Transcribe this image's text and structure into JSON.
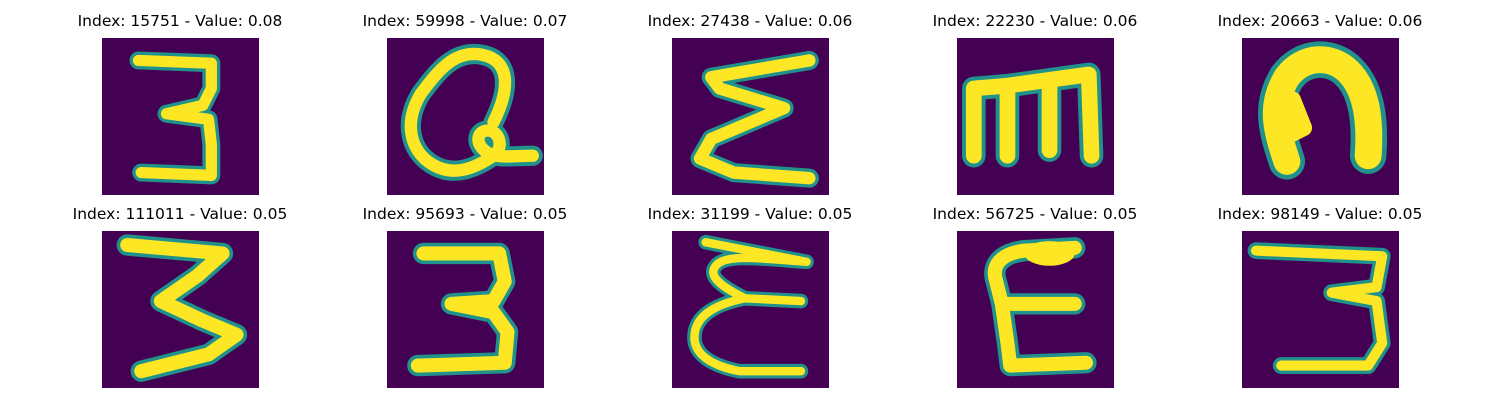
{
  "colors": {
    "background": "#440154",
    "stroke": "#fde725",
    "edge_mid": "#21918c",
    "edge_light": "#5ec962"
  },
  "panels": [
    {
      "title": "Index: 15751 - Value: 0.08",
      "glyph": "3"
    },
    {
      "title": "Index: 59998 - Value: 0.07",
      "glyph": "Q-like loop"
    },
    {
      "title": "Index: 27438 - Value: 0.06",
      "glyph": "Σ"
    },
    {
      "title": "Index: 22230 - Value: 0.06",
      "glyph": "m"
    },
    {
      "title": "Index: 20663 - Value: 0.06",
      "glyph": "n"
    },
    {
      "title": "Index: 111011 - Value: 0.05",
      "glyph": "3"
    },
    {
      "title": "Index: 95693 - Value: 0.05",
      "glyph": "3"
    },
    {
      "title": "Index: 31199 - Value: 0.05",
      "glyph": "ε"
    },
    {
      "title": "Index: 56725 - Value: 0.05",
      "glyph": "E"
    },
    {
      "title": "Index: 98149 - Value: 0.05",
      "glyph": "3"
    }
  ]
}
